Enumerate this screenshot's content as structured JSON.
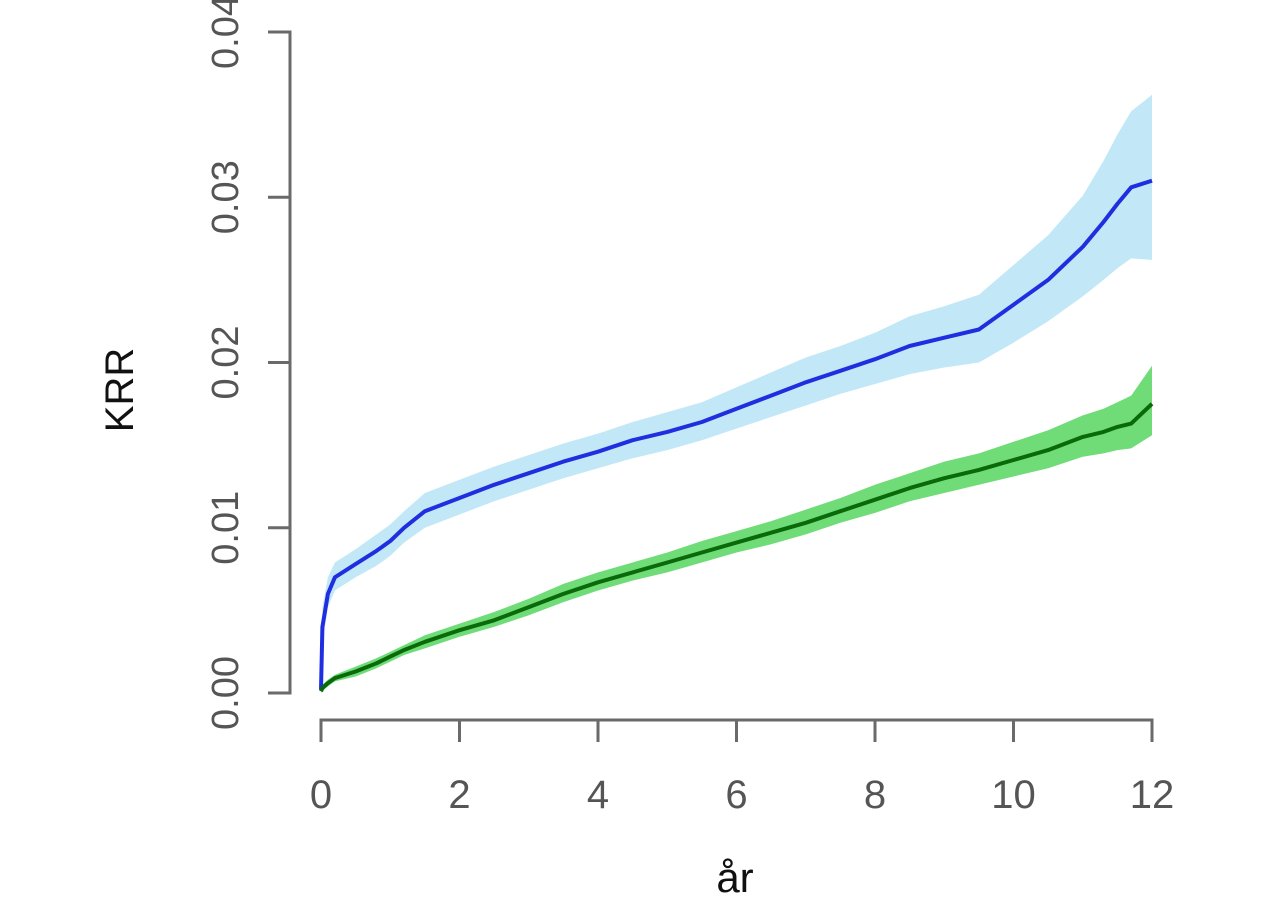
{
  "chart_data": {
    "type": "line",
    "title": "",
    "xlabel": "år",
    "ylabel": "KRR",
    "xlim": [
      0,
      12
    ],
    "ylim": [
      0,
      0.04
    ],
    "x_ticks": [
      0,
      2,
      4,
      6,
      8,
      10,
      12
    ],
    "x_tick_labels": [
      "0",
      "2",
      "4",
      "6",
      "8",
      "10",
      "12"
    ],
    "y_ticks": [
      0,
      0.01,
      0.02,
      0.03,
      0.04
    ],
    "y_tick_labels": [
      "0.00",
      "0.01",
      "0.02",
      "0.03",
      "0.04"
    ],
    "grid": false,
    "legend": "none",
    "x": [
      0,
      0.02,
      0.1,
      0.2,
      0.5,
      0.8,
      1.0,
      1.2,
      1.5,
      2.0,
      2.5,
      3.0,
      3.5,
      4.0,
      4.5,
      5.0,
      5.5,
      6.0,
      6.5,
      7.0,
      7.5,
      8.0,
      8.5,
      9.0,
      9.5,
      10.0,
      10.5,
      11.0,
      11.3,
      11.5,
      11.7,
      12.0
    ],
    "series": [
      {
        "color": "#1f2fe0",
        "band_color": "#c2e8f7",
        "values": [
          0.0002,
          0.004,
          0.006,
          0.007,
          0.0078,
          0.0086,
          0.0092,
          0.01,
          0.011,
          0.0118,
          0.0126,
          0.0133,
          0.014,
          0.0146,
          0.0153,
          0.0158,
          0.0164,
          0.0172,
          0.018,
          0.0188,
          0.0195,
          0.0202,
          0.021,
          0.0215,
          0.022,
          0.0235,
          0.025,
          0.027,
          0.0285,
          0.0296,
          0.0306,
          0.031
        ],
        "lower": [
          0.0,
          0.003,
          0.0052,
          0.0062,
          0.007,
          0.0077,
          0.0083,
          0.0091,
          0.01,
          0.0108,
          0.0116,
          0.0123,
          0.013,
          0.0136,
          0.0142,
          0.0147,
          0.0153,
          0.016,
          0.0167,
          0.0174,
          0.0181,
          0.0187,
          0.0193,
          0.0197,
          0.02,
          0.0212,
          0.0225,
          0.024,
          0.025,
          0.0257,
          0.0263,
          0.0262
        ],
        "upper": [
          0.0004,
          0.0052,
          0.007,
          0.0079,
          0.0087,
          0.0096,
          0.0102,
          0.011,
          0.0121,
          0.0129,
          0.0137,
          0.0144,
          0.0151,
          0.0157,
          0.0164,
          0.017,
          0.0176,
          0.0185,
          0.0194,
          0.0203,
          0.021,
          0.0218,
          0.0228,
          0.0234,
          0.0241,
          0.0259,
          0.0277,
          0.0301,
          0.0322,
          0.0338,
          0.0352,
          0.0362
        ]
      },
      {
        "color": "#0a6a0a",
        "band_color": "#6fdc78",
        "values": [
          0.0001,
          0.0003,
          0.0006,
          0.0009,
          0.0013,
          0.0018,
          0.0022,
          0.0026,
          0.0031,
          0.0038,
          0.0044,
          0.0052,
          0.006,
          0.0067,
          0.0073,
          0.0079,
          0.0085,
          0.0091,
          0.0097,
          0.0103,
          0.011,
          0.0117,
          0.0124,
          0.013,
          0.0135,
          0.0141,
          0.0147,
          0.0155,
          0.0158,
          0.0161,
          0.0163,
          0.0175
        ],
        "lower": [
          0.0,
          0.0001,
          0.0004,
          0.0007,
          0.001,
          0.0015,
          0.0019,
          0.0023,
          0.0027,
          0.0034,
          0.004,
          0.0047,
          0.0055,
          0.0062,
          0.0068,
          0.0073,
          0.0079,
          0.0085,
          0.009,
          0.0096,
          0.0103,
          0.0109,
          0.0116,
          0.0121,
          0.0126,
          0.0131,
          0.0136,
          0.0143,
          0.0145,
          0.0147,
          0.0148,
          0.0156
        ],
        "upper": [
          0.0002,
          0.0005,
          0.0008,
          0.0011,
          0.0016,
          0.0021,
          0.0025,
          0.0029,
          0.0035,
          0.0042,
          0.0049,
          0.0057,
          0.0066,
          0.0073,
          0.0079,
          0.0085,
          0.0092,
          0.0098,
          0.0104,
          0.0111,
          0.0118,
          0.0126,
          0.0133,
          0.014,
          0.0145,
          0.0152,
          0.0159,
          0.0168,
          0.0172,
          0.0176,
          0.018,
          0.0198
        ]
      }
    ]
  }
}
